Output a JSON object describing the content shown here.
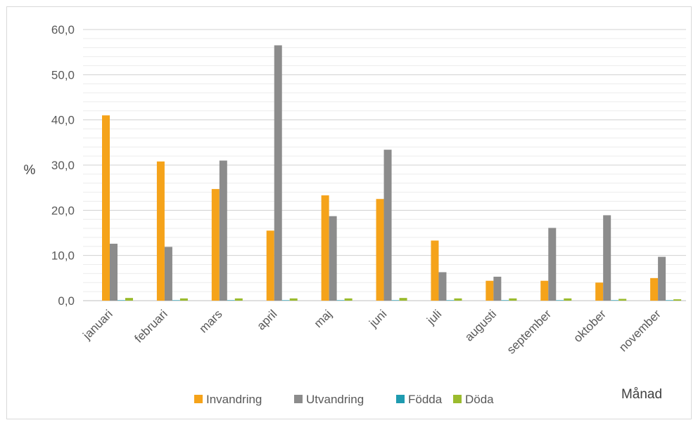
{
  "chart_data": {
    "type": "bar",
    "categories": [
      "januari",
      "februari",
      "mars",
      "april",
      "maj",
      "juni",
      "juli",
      "augusti",
      "september",
      "oktober",
      "november"
    ],
    "series": [
      {
        "name": "Invandring",
        "color": "#F5A31A",
        "values": [
          41.0,
          30.8,
          24.7,
          15.5,
          23.3,
          22.5,
          13.3,
          4.4,
          4.4,
          4.0,
          5.0
        ]
      },
      {
        "name": "Utvandring",
        "color": "#8C8C8C",
        "values": [
          12.6,
          11.9,
          31.0,
          56.5,
          18.7,
          33.4,
          6.3,
          5.3,
          16.1,
          18.9,
          9.7
        ]
      },
      {
        "name": "Födda",
        "color": "#1F9BB0",
        "values": [
          0.1,
          0.1,
          0.1,
          0.1,
          0.1,
          0.1,
          0.1,
          0.1,
          0.1,
          0.1,
          0.1
        ]
      },
      {
        "name": "Döda",
        "color": "#9BBB2E",
        "values": [
          0.6,
          0.5,
          0.5,
          0.5,
          0.5,
          0.6,
          0.5,
          0.5,
          0.5,
          0.4,
          0.3
        ]
      }
    ],
    "ylabel": "%",
    "xlabel": "Månad",
    "ylim": [
      0,
      60
    ],
    "yticks": [
      "0,0",
      "10,0",
      "20,0",
      "30,0",
      "40,0",
      "50,0",
      "60,0"
    ],
    "grid": true,
    "legend_position": "bottom"
  }
}
